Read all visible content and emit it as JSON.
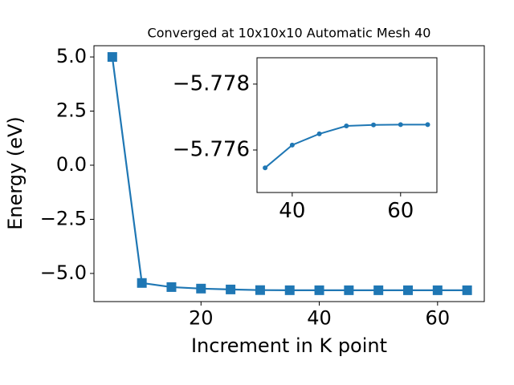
{
  "chart_data": [
    {
      "type": "line",
      "title": "Converged at 10x10x10 Automatic Mesh 40",
      "xlabel": "Increment in K point",
      "ylabel": "Energy (eV)",
      "x": [
        5,
        10,
        15,
        20,
        25,
        30,
        35,
        40,
        45,
        50,
        55,
        60,
        65
      ],
      "series": [
        {
          "color": "#1f77b4",
          "marker": "square",
          "values": [
            5.0,
            -5.44,
            -5.63,
            -5.7,
            -5.74,
            -5.77,
            -5.7755,
            -5.7762,
            -5.7765,
            -5.7767,
            -5.7768,
            -5.7768,
            -5.7768
          ]
        }
      ],
      "xlim": [
        1.9,
        67.9
      ],
      "xticks": [
        20,
        40,
        60
      ],
      "ylim": [
        -6.3,
        5.52
      ],
      "yticks": [
        {
          "value": -5,
          "label": "−5.0"
        },
        {
          "value": -2.5,
          "label": "−2.5"
        },
        {
          "value": 0,
          "label": "0.0"
        },
        2.5,
        {
          "value": 5,
          "label": "5.0"
        }
      ]
    },
    {
      "type": "line",
      "x": [
        35,
        40,
        45,
        50,
        55,
        60,
        65
      ],
      "series": [
        {
          "color": "#1f77b4",
          "marker": "circle",
          "values": [
            -5.77546,
            -5.77615,
            -5.77649,
            -5.77673,
            -5.77676,
            -5.77677,
            -5.77677
          ]
        }
      ],
      "xlim": [
        33.5,
        66.7
      ],
      "xticks": [
        40,
        60
      ],
      "ylim": [
        -5.77471,
        -5.7788
      ],
      "yticks": [
        {
          "value": -5.776,
          "label": "−5.776"
        },
        {
          "value": -5.778,
          "label": "−5.778"
        }
      ]
    }
  ]
}
